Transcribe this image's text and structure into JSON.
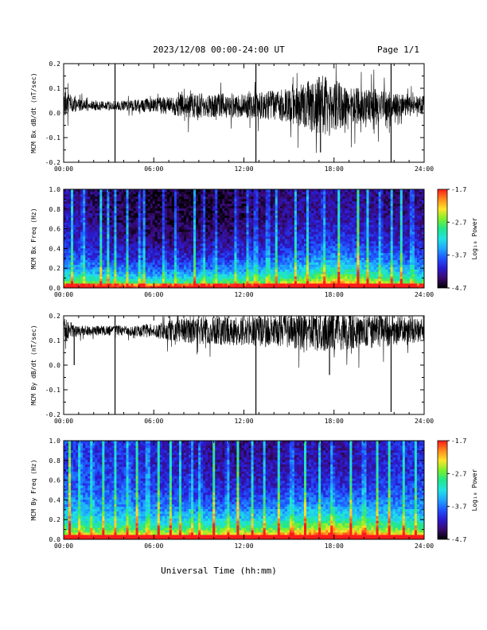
{
  "header": {
    "title": "2023/12/08  00:00-24:00 UT",
    "page": "Page 1/1"
  },
  "footer": {
    "xlabel": "Universal Time (hh:mm)"
  },
  "colorbar": {
    "label": "Log₁₀ Power",
    "ticks": [
      "-1.7",
      "-2.7",
      "-3.7",
      "-4.7"
    ],
    "range": [
      -4.7,
      -1.7
    ],
    "colors": [
      "#000000",
      "#3a0a6e",
      "#2a1bd0",
      "#1f55ff",
      "#1fa6ff",
      "#20e3e3",
      "#22e68c",
      "#7cf02a",
      "#ffe52a",
      "#ff8a1a",
      "#ff1a1a"
    ]
  },
  "chart_data": [
    {
      "type": "line",
      "panel": "mcm-bx-derivative",
      "ylabel": "MCM Bx dB/dt (nT/sec)",
      "xlim": [
        0,
        24
      ],
      "ylim": [
        -0.2,
        0.2
      ],
      "xticks": [
        "00:00",
        "06:00",
        "12:00",
        "18:00",
        "24:00"
      ],
      "yticks": [
        "0.2",
        "0.1",
        "0.0",
        "-0.1",
        "-0.2"
      ],
      "series": [
        {
          "x": [
            0,
            1,
            2,
            3,
            4,
            5,
            6,
            7,
            8,
            9,
            10,
            11,
            12,
            13,
            14,
            15,
            16,
            17,
            18,
            19,
            20,
            21,
            22,
            23,
            24
          ],
          "baseline": [
            0.04,
            0.03,
            0.03,
            0.03,
            0.03,
            0.03,
            0.03,
            0.03,
            0.03,
            0.03,
            0.03,
            0.03,
            0.03,
            0.03,
            0.03,
            0.03,
            0.03,
            0.03,
            0.03,
            0.03,
            0.03,
            0.03,
            0.03,
            0.03,
            0.03
          ],
          "amplitude": [
            0.05,
            0.025,
            0.02,
            0.02,
            0.02,
            0.025,
            0.03,
            0.04,
            0.05,
            0.05,
            0.05,
            0.05,
            0.05,
            0.055,
            0.06,
            0.07,
            0.09,
            0.13,
            0.1,
            0.08,
            0.07,
            0.07,
            0.05,
            0.04,
            0.04
          ]
        }
      ],
      "spikes": [
        {
          "x": 3.42,
          "y": -0.2
        },
        {
          "x": 3.42,
          "y": 0.2
        },
        {
          "x": 12.8,
          "y": -0.2
        },
        {
          "x": 12.8,
          "y": 0.2
        },
        {
          "x": 17.1,
          "y": -0.16
        },
        {
          "x": 21.8,
          "y": -0.2
        },
        {
          "x": 21.8,
          "y": 0.2
        }
      ]
    },
    {
      "type": "heatmap",
      "panel": "mcm-bx-spectrogram",
      "ylabel": "MCM Bx Freq (Hz)",
      "xlim": [
        0,
        24
      ],
      "ylim": [
        0,
        1
      ],
      "xticks": [
        "00:00",
        "06:00",
        "12:00",
        "18:00",
        "24:00"
      ],
      "yticks": [
        "1.0",
        "0.8",
        "0.6",
        "0.4",
        "0.2",
        "0.0"
      ],
      "x": [
        0,
        2,
        4,
        6,
        8,
        10,
        12,
        14,
        16,
        18,
        20,
        22,
        24
      ],
      "background_low_freq_power": [
        -3.3,
        -3.4,
        -3.5,
        -3.6,
        -3.5,
        -3.4,
        -3.3,
        -3.2,
        -3.0,
        -2.6,
        -2.9,
        -3.2,
        -3.4
      ],
      "background_high_freq_power": [
        -4.2,
        -4.4,
        -4.5,
        -4.6,
        -4.6,
        -4.6,
        -4.5,
        -4.4,
        -4.3,
        -4.3,
        -4.3,
        -4.4,
        -4.3
      ],
      "broadband_bursts_hours": [
        0.6,
        1.3,
        2.5,
        3.0,
        3.4,
        4.2,
        5.1,
        5.4,
        6.7,
        7.5,
        8.7,
        9.3,
        10.1,
        11.5,
        12.3,
        12.8,
        13.6,
        14.2,
        15.4,
        16.2,
        17.3,
        18.3,
        19.6,
        20.2,
        21.1,
        21.8,
        22.5,
        23.2
      ]
    },
    {
      "type": "line",
      "panel": "mcm-by-derivative",
      "ylabel": "MCM By dB/dt (nT/sec)",
      "xlim": [
        0,
        24
      ],
      "ylim": [
        -0.2,
        0.2
      ],
      "xticks": [
        "00:00",
        "06:00",
        "12:00",
        "18:00",
        "24:00"
      ],
      "yticks": [
        "0.2",
        "0.1",
        "0.0",
        "-0.1",
        "-0.2"
      ],
      "series": [
        {
          "x": [
            0,
            1,
            2,
            3,
            4,
            5,
            6,
            7,
            8,
            9,
            10,
            11,
            12,
            13,
            14,
            15,
            16,
            17,
            18,
            19,
            20,
            21,
            22,
            23,
            24
          ],
          "baseline": [
            0.14,
            0.14,
            0.14,
            0.14,
            0.14,
            0.14,
            0.14,
            0.14,
            0.14,
            0.14,
            0.14,
            0.14,
            0.14,
            0.14,
            0.14,
            0.14,
            0.14,
            0.14,
            0.14,
            0.14,
            0.14,
            0.14,
            0.14,
            0.14,
            0.14
          ],
          "amplitude": [
            0.05,
            0.02,
            0.02,
            0.02,
            0.02,
            0.025,
            0.03,
            0.04,
            0.05,
            0.055,
            0.06,
            0.06,
            0.06,
            0.065,
            0.07,
            0.07,
            0.08,
            0.09,
            0.08,
            0.08,
            0.07,
            0.07,
            0.06,
            0.05,
            0.05
          ]
        }
      ],
      "spikes": [
        {
          "x": 0.7,
          "y": 0.0
        },
        {
          "x": 3.42,
          "y": -0.2
        },
        {
          "x": 3.42,
          "y": 0.2
        },
        {
          "x": 12.8,
          "y": -0.2
        },
        {
          "x": 17.7,
          "y": -0.04
        },
        {
          "x": 21.8,
          "y": -0.19
        }
      ]
    },
    {
      "type": "heatmap",
      "panel": "mcm-by-spectrogram",
      "ylabel": "MCM By Freq (Hz)",
      "xlim": [
        0,
        24
      ],
      "ylim": [
        0,
        1
      ],
      "xticks": [
        "00:00",
        "06:00",
        "12:00",
        "18:00",
        "24:00"
      ],
      "yticks": [
        "1.0",
        "0.8",
        "0.6",
        "0.4",
        "0.2",
        "0.0"
      ],
      "x": [
        0,
        2,
        4,
        6,
        8,
        10,
        12,
        14,
        16,
        18,
        20,
        22,
        24
      ],
      "background_low_freq_power": [
        -3.0,
        -3.1,
        -3.0,
        -3.1,
        -3.0,
        -3.0,
        -2.9,
        -2.8,
        -2.6,
        -2.4,
        -2.6,
        -2.9,
        -3.0
      ],
      "background_high_freq_power": [
        -3.9,
        -4.0,
        -4.0,
        -4.1,
        -4.2,
        -4.3,
        -4.3,
        -4.3,
        -4.2,
        -4.3,
        -4.2,
        -4.1,
        -4.0
      ],
      "broadband_bursts_hours": [
        0.4,
        1.1,
        1.9,
        2.6,
        3.4,
        4.3,
        4.9,
        5.6,
        6.3,
        7.1,
        7.8,
        8.5,
        9.1,
        10.0,
        10.9,
        11.6,
        12.6,
        13.4,
        14.3,
        15.2,
        16.1,
        17.0,
        17.9,
        19.1,
        20.0,
        20.9,
        21.7,
        22.6,
        23.4
      ]
    }
  ]
}
